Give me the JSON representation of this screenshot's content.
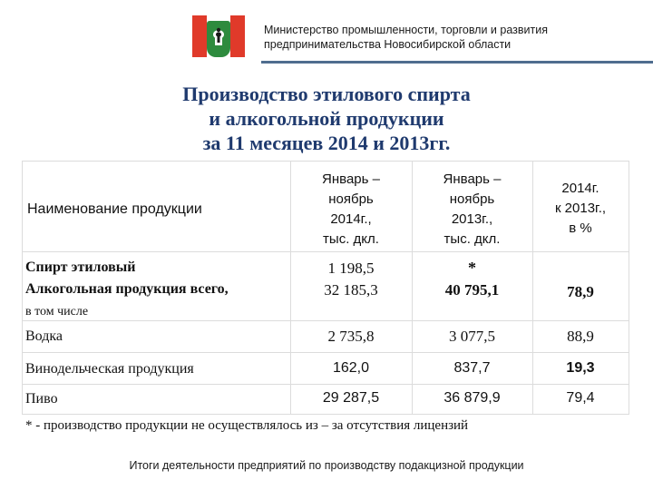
{
  "header": {
    "ministry_line1": "Министерство промышленности, торговли и развития",
    "ministry_line2": "предпринимательства Новосибирской области",
    "flag_icon": "novosibirsk-flag-icon",
    "colors": {
      "flag_red": "#e03a2a",
      "flag_green": "#2e8b3e",
      "rule": "#4f6d8f"
    }
  },
  "title": {
    "line1": "Производство этилового спирта",
    "line2": "и алкогольной продукции",
    "line3": "за 11 месяцев 2014 и 2013гг.",
    "color": "#1f3a6e"
  },
  "table": {
    "headers": {
      "name": "Наименование продукции",
      "col2014": [
        "Январь –",
        "ноябрь",
        "2014г.,",
        "тыс. дкл."
      ],
      "col2013": [
        "Январь –",
        "ноябрь",
        "2013г.,",
        "тыс. дкл."
      ],
      "ratio": [
        "2014г.",
        "к  2013г.,",
        "в  %"
      ]
    },
    "rows": {
      "spirit": {
        "name": "Спирт этиловый",
        "v2014": "1 198,5",
        "v2013": "*"
      },
      "alcohol": {
        "name": "Алкогольная продукция всего,",
        "v2014": "32 185,3",
        "v2013": "40 795,1",
        "ratio": "78,9"
      },
      "including": "в том числе",
      "vodka": {
        "name": "Водка",
        "v2014": "2 735,8",
        "v2013": "3 077,5",
        "ratio": "88,9"
      },
      "wine": {
        "name": "Винодельческая продукция",
        "v2014": "162,0",
        "v2013": "837,7",
        "ratio": "19,3"
      },
      "beer": {
        "name": "Пиво",
        "v2014": "29 287,5",
        "v2013": "36 879,9",
        "ratio": "79,4"
      }
    }
  },
  "footnote": "* - производство продукции не осуществлялось из – за отсутствия лицензий",
  "bottom_caption": "Итоги деятельности предприятий  по производству подакцизной продукции"
}
